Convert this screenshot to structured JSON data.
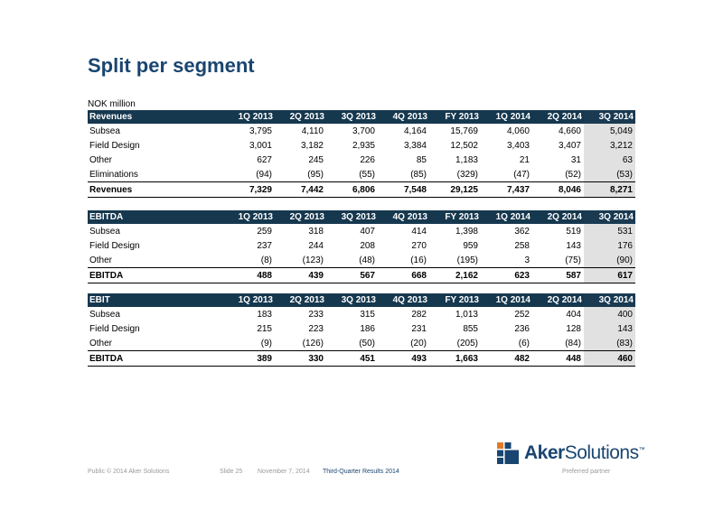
{
  "title": "Split per segment",
  "unit": "NOK million",
  "periods": [
    "1Q 2013",
    "2Q 2013",
    "3Q 2013",
    "4Q 2013",
    "FY 2013",
    "1Q 2014",
    "2Q 2014",
    "3Q 2014"
  ],
  "tables": [
    {
      "header": "Revenues",
      "rows": [
        {
          "label": "Subsea",
          "values": [
            "3,795",
            "4,110",
            "3,700",
            "4,164",
            "15,769",
            "4,060",
            "4,660",
            "5,049"
          ]
        },
        {
          "label": "Field Design",
          "values": [
            "3,001",
            "3,182",
            "2,935",
            "3,384",
            "12,502",
            "3,403",
            "3,407",
            "3,212"
          ]
        },
        {
          "label": "Other",
          "values": [
            "627",
            "245",
            "226",
            "85",
            "1,183",
            "21",
            "31",
            "63"
          ]
        },
        {
          "label": "Eliminations",
          "values": [
            "(94)",
            "(95)",
            "(55)",
            "(85)",
            "(329)",
            "(47)",
            "(52)",
            "(53)"
          ]
        }
      ],
      "total": {
        "label": "Revenues",
        "values": [
          "7,329",
          "7,442",
          "6,806",
          "7,548",
          "29,125",
          "7,437",
          "8,046",
          "8,271"
        ]
      }
    },
    {
      "header": "EBITDA",
      "rows": [
        {
          "label": "Subsea",
          "values": [
            "259",
            "318",
            "407",
            "414",
            "1,398",
            "362",
            "519",
            "531"
          ]
        },
        {
          "label": "Field Design",
          "values": [
            "237",
            "244",
            "208",
            "270",
            "959",
            "258",
            "143",
            "176"
          ]
        },
        {
          "label": "Other",
          "values": [
            "(8)",
            "(123)",
            "(48)",
            "(16)",
            "(195)",
            "3",
            "(75)",
            "(90)"
          ]
        }
      ],
      "total": {
        "label": "EBITDA",
        "values": [
          "488",
          "439",
          "567",
          "668",
          "2,162",
          "623",
          "587",
          "617"
        ]
      }
    },
    {
      "header": "EBIT",
      "rows": [
        {
          "label": "Subsea",
          "values": [
            "183",
            "233",
            "315",
            "282",
            "1,013",
            "252",
            "404",
            "400"
          ]
        },
        {
          "label": "Field Design",
          "values": [
            "215",
            "223",
            "186",
            "231",
            "855",
            "236",
            "128",
            "143"
          ]
        },
        {
          "label": "Other",
          "values": [
            "(9)",
            "(126)",
            "(50)",
            "(20)",
            "(205)",
            "(6)",
            "(84)",
            "(83)"
          ]
        }
      ],
      "total": {
        "label": "EBITDA",
        "values": [
          "389",
          "330",
          "451",
          "493",
          "1,663",
          "482",
          "448",
          "460"
        ]
      }
    }
  ],
  "footer": {
    "copyright": "Public © 2014 Aker Solutions",
    "slide": "Slide 25",
    "date": "November 7, 2014",
    "presentation": "Third-Quarter Results 2014",
    "tagline": "Preferred partner"
  },
  "logo": {
    "text_bold": "Aker",
    "text_light": "Solutions",
    "tm": "™",
    "color": "#1a4570"
  }
}
